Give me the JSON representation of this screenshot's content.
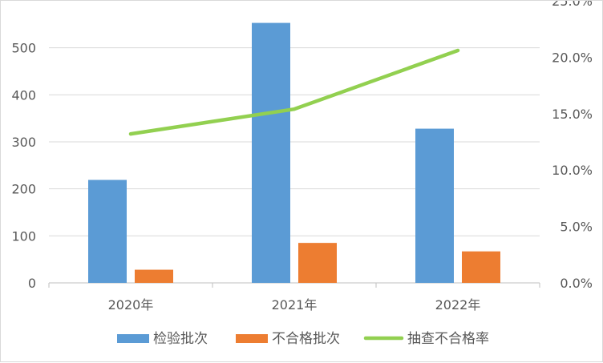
{
  "chart_data": {
    "type": "bar",
    "categories": [
      "2020年",
      "2021年",
      "2022年"
    ],
    "series": [
      {
        "name": "检验批次",
        "type": "bar",
        "axis": "left",
        "color": "#5b9bd5",
        "values": [
          219,
          553,
          328
        ]
      },
      {
        "name": "不合格批次",
        "type": "bar",
        "axis": "left",
        "color": "#ed7d31",
        "values": [
          28,
          85,
          67
        ]
      },
      {
        "name": "抽查不合格率",
        "type": "line",
        "axis": "right",
        "color": "#92d050",
        "values": [
          0.132,
          0.154,
          0.206
        ]
      }
    ],
    "y_left": {
      "min": 0,
      "max": 600,
      "ticks": [
        0,
        100,
        200,
        300,
        400,
        500
      ]
    },
    "y_right": {
      "min": 0,
      "max": 0.25,
      "ticks": [
        "0.0%",
        "5.0%",
        "10.0%",
        "15.0%",
        "20.0%",
        "25.0%"
      ]
    },
    "grid": true,
    "legend_position": "bottom"
  }
}
